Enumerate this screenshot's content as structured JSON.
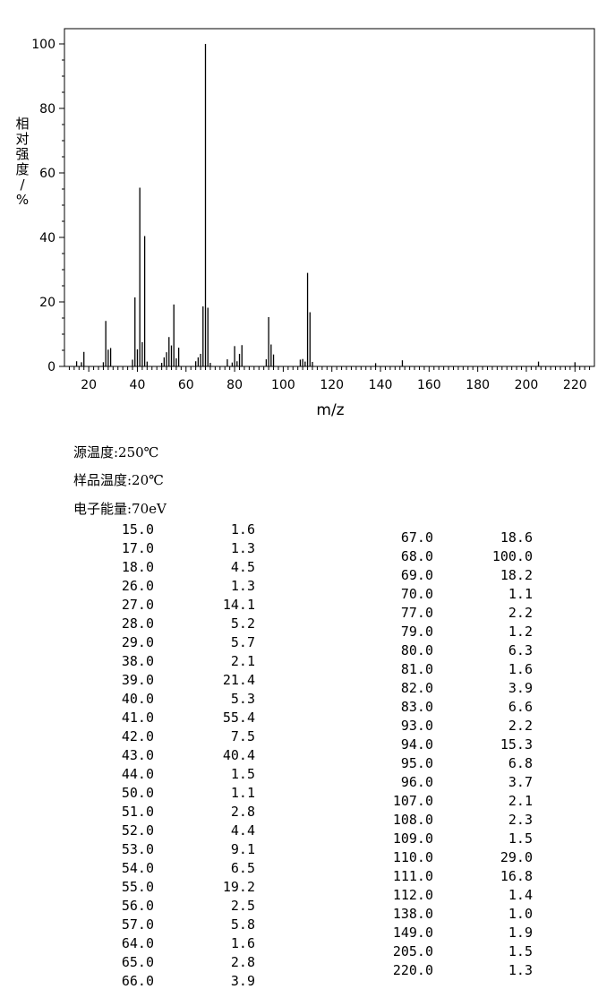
{
  "chart_data": {
    "type": "bar",
    "xlabel": "m/z",
    "ylabel": "相对强度/%",
    "xlim": [
      10,
      228
    ],
    "ylim": [
      0,
      100
    ],
    "xticks": [
      20,
      40,
      60,
      80,
      100,
      120,
      140,
      160,
      180,
      200,
      220
    ],
    "yticks": [
      0,
      20,
      40,
      60,
      80,
      100
    ],
    "x": [
      15,
      17,
      18,
      26,
      27,
      28,
      29,
      38,
      39,
      40,
      41,
      42,
      43,
      44,
      50,
      51,
      52,
      53,
      54,
      55,
      56,
      57,
      64,
      65,
      66,
      67,
      68,
      69,
      70,
      77,
      79,
      80,
      81,
      82,
      83,
      93,
      94,
      95,
      96,
      107,
      108,
      109,
      110,
      111,
      112,
      138,
      149,
      205,
      220
    ],
    "values": [
      1.6,
      1.3,
      4.5,
      1.3,
      14.1,
      5.2,
      5.7,
      2.1,
      21.4,
      5.3,
      55.4,
      7.5,
      40.4,
      1.5,
      1.1,
      2.8,
      4.4,
      9.1,
      6.5,
      19.2,
      2.5,
      5.8,
      1.6,
      2.8,
      3.9,
      18.6,
      100.0,
      18.2,
      1.1,
      2.2,
      1.2,
      6.3,
      1.6,
      3.9,
      6.6,
      2.2,
      15.3,
      6.8,
      3.7,
      2.1,
      2.3,
      1.5,
      29.0,
      16.8,
      1.4,
      1.0,
      1.9,
      1.5,
      1.3
    ]
  },
  "conditions": {
    "source_temp": "源温度:250℃",
    "sample_temp": "样品温度:20℃",
    "electron_energy": "电子能量:70eV"
  },
  "peak_table": {
    "left": [
      {
        "mz": "15.0",
        "abundance": "1.6"
      },
      {
        "mz": "17.0",
        "abundance": "1.3"
      },
      {
        "mz": "18.0",
        "abundance": "4.5"
      },
      {
        "mz": "26.0",
        "abundance": "1.3"
      },
      {
        "mz": "27.0",
        "abundance": "14.1"
      },
      {
        "mz": "28.0",
        "abundance": "5.2"
      },
      {
        "mz": "29.0",
        "abundance": "5.7"
      },
      {
        "mz": "38.0",
        "abundance": "2.1"
      },
      {
        "mz": "39.0",
        "abundance": "21.4"
      },
      {
        "mz": "40.0",
        "abundance": "5.3"
      },
      {
        "mz": "41.0",
        "abundance": "55.4"
      },
      {
        "mz": "42.0",
        "abundance": "7.5"
      },
      {
        "mz": "43.0",
        "abundance": "40.4"
      },
      {
        "mz": "44.0",
        "abundance": "1.5"
      },
      {
        "mz": "50.0",
        "abundance": "1.1"
      },
      {
        "mz": "51.0",
        "abundance": "2.8"
      },
      {
        "mz": "52.0",
        "abundance": "4.4"
      },
      {
        "mz": "53.0",
        "abundance": "9.1"
      },
      {
        "mz": "54.0",
        "abundance": "6.5"
      },
      {
        "mz": "55.0",
        "abundance": "19.2"
      },
      {
        "mz": "56.0",
        "abundance": "2.5"
      },
      {
        "mz": "57.0",
        "abundance": "5.8"
      },
      {
        "mz": "64.0",
        "abundance": "1.6"
      },
      {
        "mz": "65.0",
        "abundance": "2.8"
      },
      {
        "mz": "66.0",
        "abundance": "3.9"
      }
    ],
    "right": [
      {
        "mz": "67.0",
        "abundance": "18.6"
      },
      {
        "mz": "68.0",
        "abundance": "100.0"
      },
      {
        "mz": "69.0",
        "abundance": "18.2"
      },
      {
        "mz": "70.0",
        "abundance": "1.1"
      },
      {
        "mz": "77.0",
        "abundance": "2.2"
      },
      {
        "mz": "79.0",
        "abundance": "1.2"
      },
      {
        "mz": "80.0",
        "abundance": "6.3"
      },
      {
        "mz": "81.0",
        "abundance": "1.6"
      },
      {
        "mz": "82.0",
        "abundance": "3.9"
      },
      {
        "mz": "83.0",
        "abundance": "6.6"
      },
      {
        "mz": "93.0",
        "abundance": "2.2"
      },
      {
        "mz": "94.0",
        "abundance": "15.3"
      },
      {
        "mz": "95.0",
        "abundance": "6.8"
      },
      {
        "mz": "96.0",
        "abundance": "3.7"
      },
      {
        "mz": "107.0",
        "abundance": "2.1"
      },
      {
        "mz": "108.0",
        "abundance": "2.3"
      },
      {
        "mz": "109.0",
        "abundance": "1.5"
      },
      {
        "mz": "110.0",
        "abundance": "29.0"
      },
      {
        "mz": "111.0",
        "abundance": "16.8"
      },
      {
        "mz": "112.0",
        "abundance": "1.4"
      },
      {
        "mz": "138.0",
        "abundance": "1.0"
      },
      {
        "mz": "149.0",
        "abundance": "1.9"
      },
      {
        "mz": "205.0",
        "abundance": "1.5"
      },
      {
        "mz": "220.0",
        "abundance": "1.3"
      }
    ]
  }
}
